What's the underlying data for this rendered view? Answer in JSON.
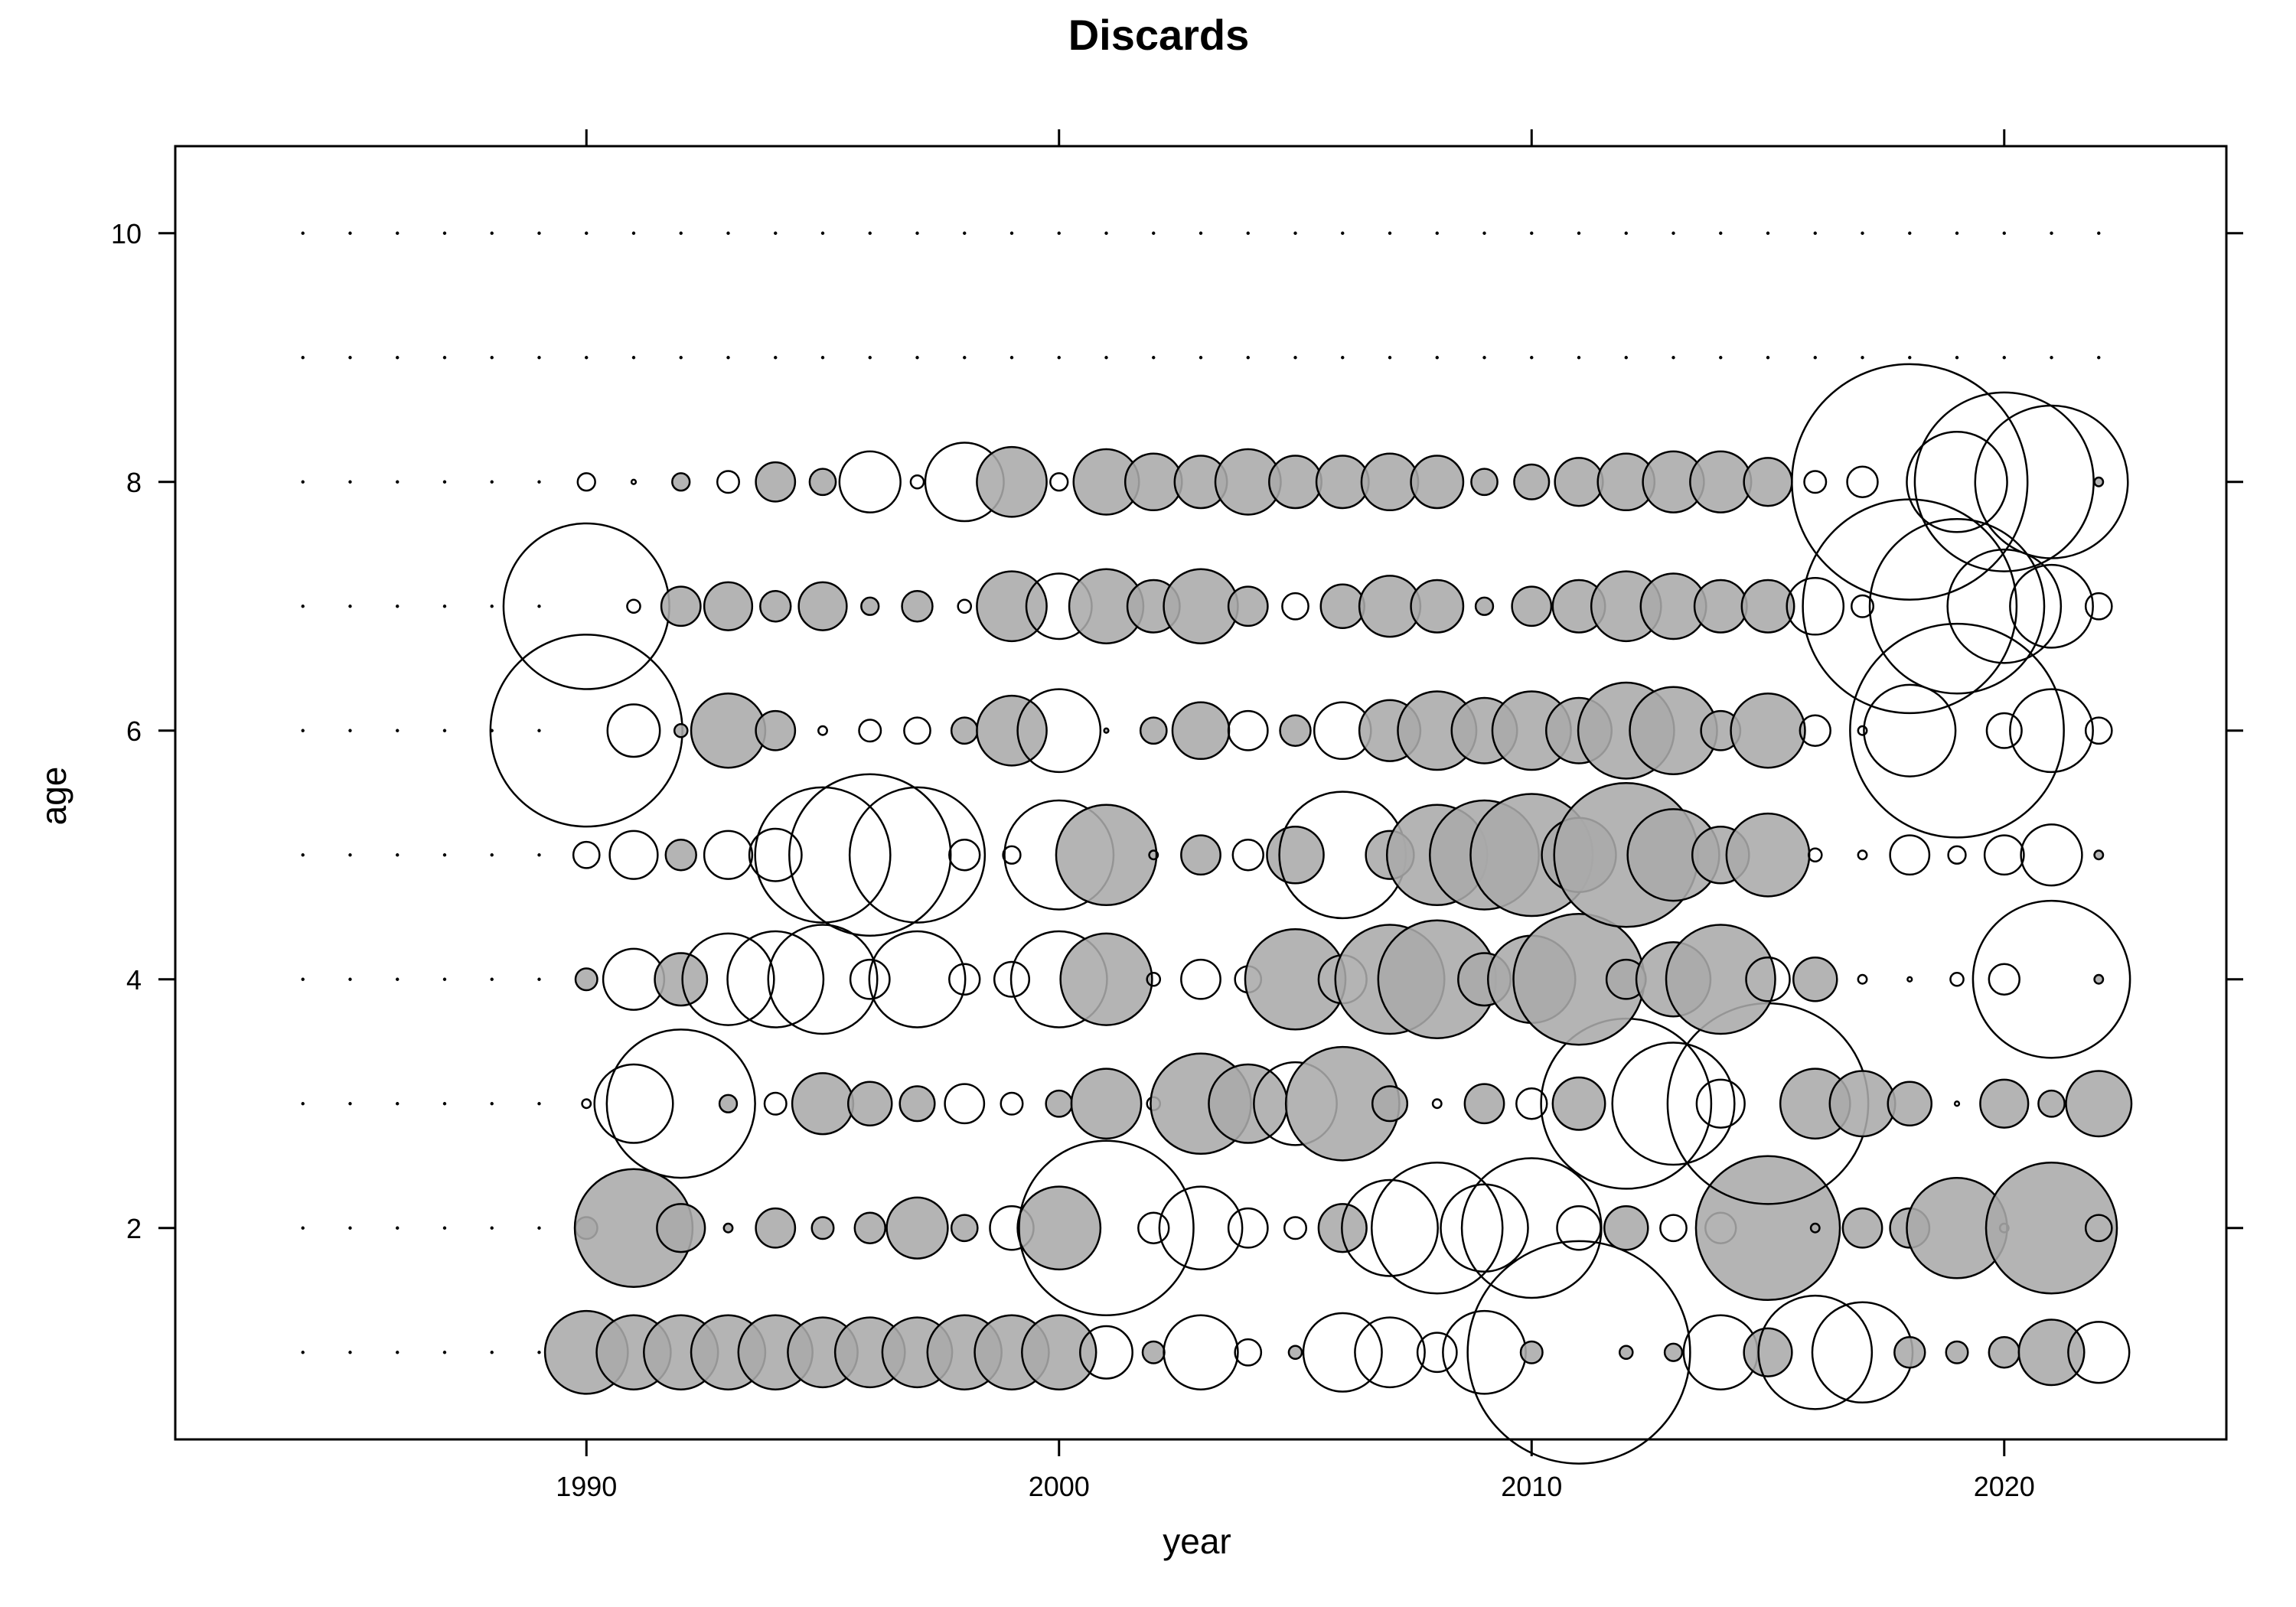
{
  "chart_data": {
    "type": "scatter",
    "title": "Discards",
    "xlabel": "year",
    "ylabel": "age",
    "xlim": [
      1981.3,
      2024.7
    ],
    "ylim": [
      0.3,
      10.7
    ],
    "x_ticks": [
      1990,
      2000,
      2010,
      2020
    ],
    "y_ticks": [
      2,
      4,
      6,
      8,
      10
    ],
    "x_tick_labels": [
      "1990",
      "2000",
      "2010",
      "2020"
    ],
    "y_tick_labels": [
      "2",
      "4",
      "6",
      "8",
      "10"
    ],
    "x_ticks_top": true,
    "y_ticks_right": true,
    "grid": false,
    "legend": "none",
    "encoding": "bubble size = |residual|; filled grey = positive, open = negative",
    "colors": {
      "positive": "#aaaaaa",
      "negative": "#ffffff",
      "stroke": "#000000"
    },
    "dot_years": [
      1984,
      1985,
      1986,
      1987,
      1988,
      1989,
      1990,
      1991,
      1992,
      1993,
      1994,
      1995,
      1996,
      1997,
      1998,
      1999,
      2000,
      2001,
      2002,
      2003,
      2004,
      2005,
      2006,
      2007,
      2008,
      2009,
      2010,
      2011,
      2012,
      2013,
      2014,
      2015,
      2016,
      2017,
      2018,
      2019,
      2020,
      2021,
      2022
    ],
    "dot_ages": [
      9,
      10
    ],
    "points": [
      [
        1990,
        1,
        19,
        1
      ],
      [
        1991,
        1,
        17,
        1
      ],
      [
        1992,
        1,
        17,
        1
      ],
      [
        1993,
        1,
        17,
        1
      ],
      [
        1994,
        1,
        17,
        1
      ],
      [
        1995,
        1,
        16,
        1
      ],
      [
        1996,
        1,
        16,
        1
      ],
      [
        1997,
        1,
        16,
        1
      ],
      [
        1998,
        1,
        17,
        1
      ],
      [
        1999,
        1,
        17,
        1
      ],
      [
        2000,
        1,
        17,
        1
      ],
      [
        2001,
        1,
        12,
        0
      ],
      [
        2002,
        1,
        5,
        1
      ],
      [
        2003,
        1,
        17,
        0
      ],
      [
        2004,
        1,
        6,
        0
      ],
      [
        2005,
        1,
        3,
        1
      ],
      [
        2006,
        1,
        18,
        0
      ],
      [
        2007,
        1,
        16,
        0
      ],
      [
        2008,
        1,
        9,
        0
      ],
      [
        2009,
        1,
        19,
        0
      ],
      [
        2010,
        1,
        5,
        1
      ],
      [
        2011,
        1,
        51,
        0
      ],
      [
        2012,
        1,
        3,
        1
      ],
      [
        2013,
        1,
        4,
        1
      ],
      [
        2014,
        1,
        17,
        0
      ],
      [
        2015,
        1,
        11,
        1
      ],
      [
        2016,
        1,
        26,
        0
      ],
      [
        2017,
        1,
        23,
        0
      ],
      [
        2018,
        1,
        7,
        1
      ],
      [
        2019,
        1,
        5,
        1
      ],
      [
        2020,
        1,
        7,
        1
      ],
      [
        2021,
        1,
        15,
        1
      ],
      [
        2022,
        1,
        14,
        0
      ],
      [
        1990,
        2,
        5,
        1
      ],
      [
        1991,
        2,
        27,
        1
      ],
      [
        1992,
        2,
        11,
        1
      ],
      [
        1993,
        2,
        2,
        1
      ],
      [
        1994,
        2,
        9,
        1
      ],
      [
        1995,
        2,
        5,
        1
      ],
      [
        1996,
        2,
        7,
        1
      ],
      [
        1997,
        2,
        14,
        1
      ],
      [
        1998,
        2,
        6,
        1
      ],
      [
        1999,
        2,
        10,
        0
      ],
      [
        2000,
        2,
        19,
        1
      ],
      [
        2001,
        2,
        40,
        0
      ],
      [
        2002,
        2,
        7,
        0
      ],
      [
        2003,
        2,
        19,
        0
      ],
      [
        2004,
        2,
        9,
        0
      ],
      [
        2005,
        2,
        5,
        0
      ],
      [
        2006,
        2,
        11,
        1
      ],
      [
        2007,
        2,
        22,
        0
      ],
      [
        2008,
        2,
        30,
        0
      ],
      [
        2009,
        2,
        20,
        0
      ],
      [
        2010,
        2,
        32,
        0
      ],
      [
        2011,
        2,
        10,
        0
      ],
      [
        2012,
        2,
        10,
        1
      ],
      [
        2013,
        2,
        6,
        0
      ],
      [
        2014,
        2,
        7,
        0
      ],
      [
        2015,
        2,
        33,
        1
      ],
      [
        2016,
        2,
        2,
        1
      ],
      [
        2017,
        2,
        9,
        1
      ],
      [
        2018,
        2,
        9,
        1
      ],
      [
        2019,
        2,
        23,
        1
      ],
      [
        2020,
        2,
        2,
        0
      ],
      [
        2021,
        2,
        30,
        1
      ],
      [
        2022,
        2,
        6,
        0
      ],
      [
        1990,
        3,
        2,
        0
      ],
      [
        1991,
        3,
        18,
        0
      ],
      [
        1992,
        3,
        34,
        0
      ],
      [
        1993,
        3,
        4,
        1
      ],
      [
        1994,
        3,
        5,
        0
      ],
      [
        1995,
        3,
        14,
        1
      ],
      [
        1996,
        3,
        10,
        1
      ],
      [
        1997,
        3,
        8,
        1
      ],
      [
        1998,
        3,
        9,
        0
      ],
      [
        1999,
        3,
        5,
        0
      ],
      [
        2000,
        3,
        6,
        1
      ],
      [
        2001,
        3,
        16,
        1
      ],
      [
        2002,
        3,
        3,
        0
      ],
      [
        2003,
        3,
        23,
        1
      ],
      [
        2004,
        3,
        18,
        1
      ],
      [
        2005,
        3,
        19,
        0
      ],
      [
        2006,
        3,
        26,
        1
      ],
      [
        2007,
        3,
        8,
        1
      ],
      [
        2008,
        3,
        2,
        0
      ],
      [
        2009,
        3,
        9,
        1
      ],
      [
        2010,
        3,
        7,
        0
      ],
      [
        2011,
        3,
        12,
        1
      ],
      [
        2012,
        3,
        39,
        0
      ],
      [
        2013,
        3,
        28,
        0
      ],
      [
        2014,
        3,
        11,
        0
      ],
      [
        2015,
        3,
        46,
        0
      ],
      [
        2016,
        3,
        16,
        1
      ],
      [
        2017,
        3,
        15,
        1
      ],
      [
        2018,
        3,
        10,
        1
      ],
      [
        2019,
        3,
        1,
        0
      ],
      [
        2020,
        3,
        11,
        1
      ],
      [
        2021,
        3,
        6,
        1
      ],
      [
        2022,
        3,
        15,
        1
      ],
      [
        1990,
        4,
        5,
        1
      ],
      [
        1991,
        4,
        14,
        0
      ],
      [
        1992,
        4,
        12,
        1
      ],
      [
        1993,
        4,
        21,
        0
      ],
      [
        1994,
        4,
        22,
        0
      ],
      [
        1995,
        4,
        25,
        0
      ],
      [
        1996,
        4,
        9,
        0
      ],
      [
        1997,
        4,
        22,
        0
      ],
      [
        1998,
        4,
        7,
        0
      ],
      [
        1999,
        4,
        8,
        0
      ],
      [
        2000,
        4,
        22,
        0
      ],
      [
        2001,
        4,
        21,
        1
      ],
      [
        2002,
        4,
        3,
        0
      ],
      [
        2003,
        4,
        9,
        0
      ],
      [
        2004,
        4,
        6,
        0
      ],
      [
        2005,
        4,
        23,
        1
      ],
      [
        2006,
        4,
        11,
        0
      ],
      [
        2007,
        4,
        25,
        1
      ],
      [
        2008,
        4,
        27,
        1
      ],
      [
        2009,
        4,
        12,
        1
      ],
      [
        2010,
        4,
        20,
        1
      ],
      [
        2011,
        4,
        30,
        1
      ],
      [
        2012,
        4,
        9,
        1
      ],
      [
        2013,
        4,
        17,
        1
      ],
      [
        2014,
        4,
        25,
        1
      ],
      [
        2015,
        4,
        10,
        0
      ],
      [
        2016,
        4,
        10,
        1
      ],
      [
        2017,
        4,
        2,
        0
      ],
      [
        2018,
        4,
        1,
        0
      ],
      [
        2019,
        4,
        3,
        0
      ],
      [
        2020,
        4,
        7,
        0
      ],
      [
        2021,
        4,
        36,
        0
      ],
      [
        2022,
        4,
        2,
        1
      ],
      [
        1990,
        5,
        6,
        0
      ],
      [
        1991,
        5,
        11,
        0
      ],
      [
        1992,
        5,
        7,
        1
      ],
      [
        1993,
        5,
        11,
        0
      ],
      [
        1994,
        5,
        12,
        0
      ],
      [
        1995,
        5,
        31,
        0
      ],
      [
        1996,
        5,
        37,
        0
      ],
      [
        1997,
        5,
        31,
        0
      ],
      [
        1998,
        5,
        7,
        0
      ],
      [
        1999,
        5,
        4,
        0
      ],
      [
        2000,
        5,
        25,
        0
      ],
      [
        2001,
        5,
        23,
        1
      ],
      [
        2002,
        5,
        2,
        0
      ],
      [
        2003,
        5,
        9,
        1
      ],
      [
        2004,
        5,
        7,
        0
      ],
      [
        2005,
        5,
        13,
        1
      ],
      [
        2006,
        5,
        29,
        0
      ],
      [
        2007,
        5,
        11,
        1
      ],
      [
        2008,
        5,
        23,
        1
      ],
      [
        2009,
        5,
        25,
        1
      ],
      [
        2010,
        5,
        28,
        1
      ],
      [
        2011,
        5,
        17,
        1
      ],
      [
        2012,
        5,
        33,
        1
      ],
      [
        2013,
        5,
        21,
        1
      ],
      [
        2014,
        5,
        13,
        1
      ],
      [
        2015,
        5,
        19,
        1
      ],
      [
        2016,
        5,
        3,
        0
      ],
      [
        2017,
        5,
        2,
        0
      ],
      [
        2018,
        5,
        9,
        0
      ],
      [
        2019,
        5,
        4,
        0
      ],
      [
        2020,
        5,
        9,
        0
      ],
      [
        2021,
        5,
        14,
        0
      ],
      [
        2022,
        5,
        2,
        1
      ],
      [
        1990,
        6,
        44,
        0
      ],
      [
        1991,
        6,
        12,
        0
      ],
      [
        1992,
        6,
        3,
        1
      ],
      [
        1993,
        6,
        17,
        1
      ],
      [
        1994,
        6,
        9,
        1
      ],
      [
        1995,
        6,
        2,
        0
      ],
      [
        1996,
        6,
        5,
        0
      ],
      [
        1997,
        6,
        6,
        0
      ],
      [
        1998,
        6,
        6,
        1
      ],
      [
        1999,
        6,
        16,
        1
      ],
      [
        2000,
        6,
        19,
        0
      ],
      [
        2001,
        6,
        1,
        1
      ],
      [
        2002,
        6,
        6,
        1
      ],
      [
        2003,
        6,
        13,
        1
      ],
      [
        2004,
        6,
        9,
        0
      ],
      [
        2005,
        6,
        7,
        1
      ],
      [
        2006,
        6,
        13,
        0
      ],
      [
        2007,
        6,
        14,
        1
      ],
      [
        2008,
        6,
        18,
        1
      ],
      [
        2009,
        6,
        15,
        1
      ],
      [
        2010,
        6,
        18,
        1
      ],
      [
        2011,
        6,
        15,
        1
      ],
      [
        2012,
        6,
        22,
        1
      ],
      [
        2013,
        6,
        20,
        1
      ],
      [
        2014,
        6,
        9,
        1
      ],
      [
        2015,
        6,
        17,
        1
      ],
      [
        2016,
        6,
        7,
        0
      ],
      [
        2017,
        6,
        2,
        0
      ],
      [
        2018,
        6,
        21,
        0
      ],
      [
        2019,
        6,
        49,
        0
      ],
      [
        2020,
        6,
        8,
        0
      ],
      [
        2021,
        6,
        19,
        0
      ],
      [
        2022,
        6,
        6,
        0
      ],
      [
        1990,
        7,
        38,
        0
      ],
      [
        1991,
        7,
        3,
        0
      ],
      [
        1992,
        7,
        9,
        1
      ],
      [
        1993,
        7,
        11,
        1
      ],
      [
        1994,
        7,
        7,
        1
      ],
      [
        1995,
        7,
        11,
        1
      ],
      [
        1996,
        7,
        4,
        1
      ],
      [
        1997,
        7,
        7,
        1
      ],
      [
        1998,
        7,
        3,
        0
      ],
      [
        1999,
        7,
        16,
        1
      ],
      [
        2000,
        7,
        15,
        0
      ],
      [
        2001,
        7,
        17,
        1
      ],
      [
        2002,
        7,
        12,
        1
      ],
      [
        2003,
        7,
        17,
        1
      ],
      [
        2004,
        7,
        9,
        1
      ],
      [
        2005,
        7,
        6,
        0
      ],
      [
        2006,
        7,
        10,
        1
      ],
      [
        2007,
        7,
        14,
        1
      ],
      [
        2008,
        7,
        12,
        1
      ],
      [
        2009,
        7,
        4,
        1
      ],
      [
        2010,
        7,
        9,
        1
      ],
      [
        2011,
        7,
        12,
        1
      ],
      [
        2012,
        7,
        16,
        1
      ],
      [
        2013,
        7,
        15,
        1
      ],
      [
        2014,
        7,
        12,
        1
      ],
      [
        2015,
        7,
        12,
        1
      ],
      [
        2016,
        7,
        13,
        0
      ],
      [
        2017,
        7,
        5,
        0
      ],
      [
        2018,
        7,
        49,
        0
      ],
      [
        2019,
        7,
        40,
        0
      ],
      [
        2020,
        7,
        26,
        0
      ],
      [
        2021,
        7,
        19,
        0
      ],
      [
        2022,
        7,
        6,
        0
      ],
      [
        1990,
        8,
        4,
        0
      ],
      [
        1991,
        8,
        1,
        0
      ],
      [
        1992,
        8,
        4,
        1
      ],
      [
        1993,
        8,
        5,
        0
      ],
      [
        1994,
        8,
        9,
        1
      ],
      [
        1995,
        8,
        6,
        1
      ],
      [
        1996,
        8,
        14,
        0
      ],
      [
        1997,
        8,
        3,
        0
      ],
      [
        1998,
        8,
        18,
        0
      ],
      [
        1999,
        8,
        16,
        1
      ],
      [
        2000,
        8,
        4,
        0
      ],
      [
        2001,
        8,
        15,
        1
      ],
      [
        2002,
        8,
        13,
        1
      ],
      [
        2003,
        8,
        12,
        1
      ],
      [
        2004,
        8,
        15,
        1
      ],
      [
        2005,
        8,
        12,
        1
      ],
      [
        2006,
        8,
        12,
        1
      ],
      [
        2007,
        8,
        13,
        1
      ],
      [
        2008,
        8,
        12,
        1
      ],
      [
        2009,
        8,
        6,
        1
      ],
      [
        2010,
        8,
        8,
        1
      ],
      [
        2011,
        8,
        11,
        1
      ],
      [
        2012,
        8,
        13,
        1
      ],
      [
        2013,
        8,
        14,
        1
      ],
      [
        2014,
        8,
        14,
        1
      ],
      [
        2015,
        8,
        11,
        1
      ],
      [
        2016,
        8,
        5,
        0
      ],
      [
        2017,
        8,
        7,
        0
      ],
      [
        2018,
        8,
        54,
        0
      ],
      [
        2019,
        8,
        23,
        0
      ],
      [
        2020,
        8,
        41,
        0
      ],
      [
        2021,
        8,
        35,
        0
      ],
      [
        2022,
        8,
        2,
        1
      ]
    ]
  }
}
